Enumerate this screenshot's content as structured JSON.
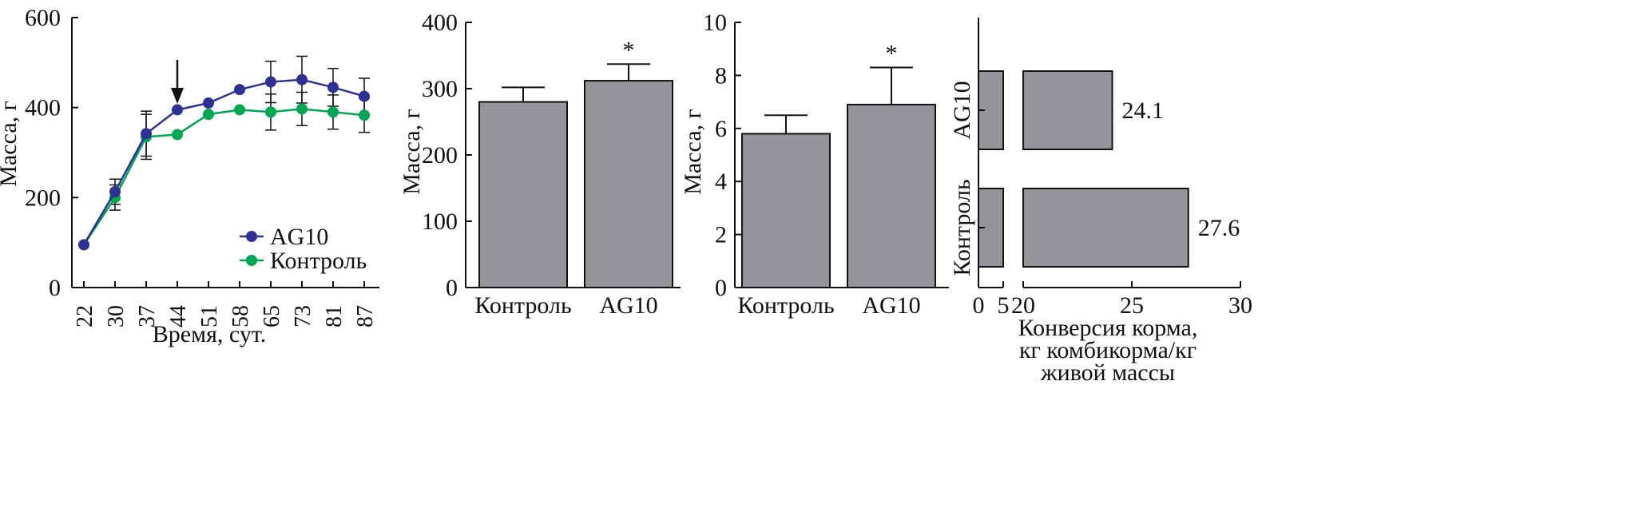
{
  "colors": {
    "ag10": "#2e3192",
    "control": "#00a651",
    "bar": "#939598",
    "stroke": "#111111"
  },
  "chart_data": [
    {
      "type": "line",
      "ylabel": "Масса, г",
      "xlabel": "Время, сут.",
      "ylim": [
        0,
        600
      ],
      "yticks": [
        "0",
        "200",
        "400",
        "600"
      ],
      "categories": [
        "22",
        "30",
        "37",
        "44",
        "51",
        "58",
        "65",
        "73",
        "81",
        "87"
      ],
      "series": [
        {
          "name": "AG10",
          "values": [
            95,
            213,
            342,
            395,
            410,
            440,
            457,
            462,
            445,
            425
          ],
          "err": [
            0,
            28,
            50,
            0,
            0,
            0,
            46,
            52,
            42,
            40
          ]
        },
        {
          "name": "Контроль",
          "values": [
            95,
            200,
            335,
            340,
            385,
            395,
            390,
            397,
            390,
            383
          ],
          "err": [
            0,
            28,
            50,
            0,
            0,
            0,
            40,
            37,
            38,
            38
          ]
        }
      ],
      "marker_day": "44",
      "legend": "lower-right",
      "grid": false
    },
    {
      "type": "bar",
      "ylabel": "Масса, г",
      "ylim": [
        0,
        400
      ],
      "yticks": [
        "0",
        "100",
        "200",
        "300",
        "400"
      ],
      "categories": [
        "Контроль",
        "AG10"
      ],
      "values": [
        280,
        312
      ],
      "err": [
        22,
        25
      ],
      "annotations": [
        "",
        "*"
      ]
    },
    {
      "type": "bar",
      "ylabel": "Масса, г",
      "ylim": [
        0,
        10
      ],
      "yticks": [
        "0",
        "2",
        "4",
        "6",
        "8",
        "10"
      ],
      "categories": [
        "Контроль",
        "AG10"
      ],
      "values": [
        5.8,
        6.9
      ],
      "err": [
        0.7,
        1.4
      ],
      "annotations": [
        "",
        "*"
      ]
    },
    {
      "type": "bar",
      "orientation": "horizontal",
      "categories": [
        "Контроль",
        "AG10"
      ],
      "values": [
        27.6,
        24.1
      ],
      "value_labels": [
        "27.6",
        "24.1"
      ],
      "xticks": [
        "0",
        "5",
        "20",
        "25",
        "30"
      ],
      "broken_axis": [
        5,
        20
      ],
      "xlabel_lines": [
        "Конверсия корма,",
        "кг комбикорма/кг",
        "живой массы"
      ]
    }
  ]
}
